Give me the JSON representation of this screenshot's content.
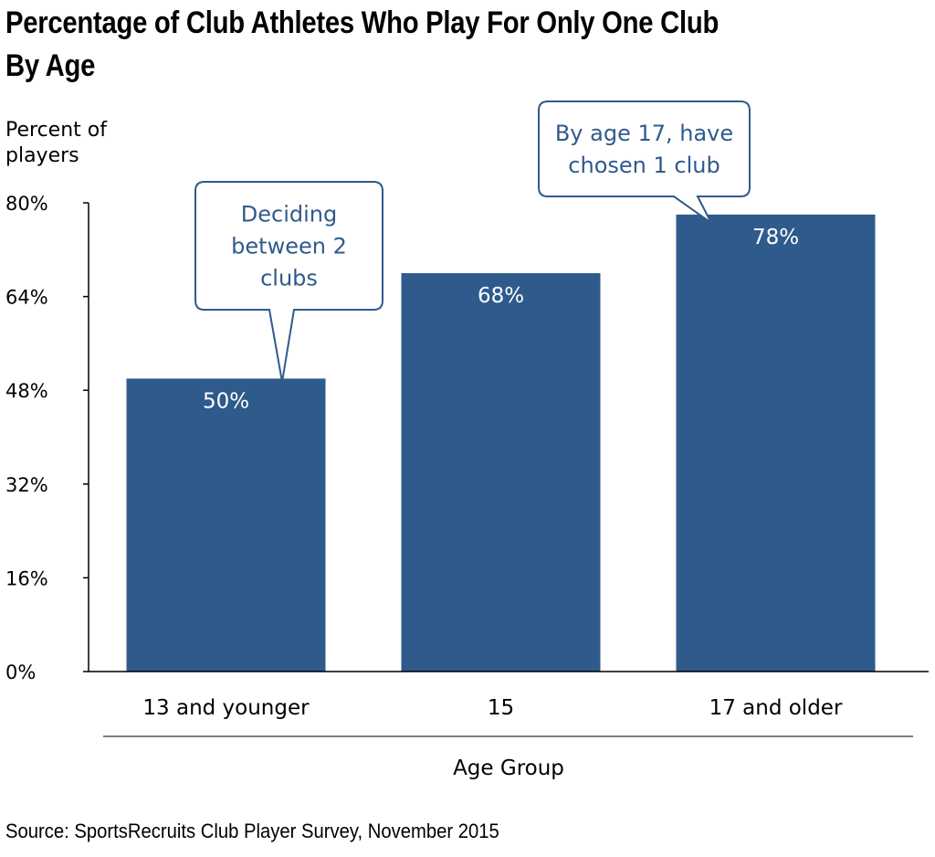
{
  "title_line1": "Percentage of Club Athletes Who Play For Only One Club",
  "title_line2": "By Age",
  "ylabel_line1": "Percent of",
  "ylabel_line2": "players",
  "source": "Source: SportsRecruits Club Player Survey, November 2015",
  "colors": {
    "bar": "#2f5a8c",
    "callout_text": "#2f5a8c",
    "axis": "#000000"
  },
  "chart_data": {
    "type": "bar",
    "title": "Percentage of Club Athletes Who Play For Only One Club By Age",
    "xlabel": "Age Group",
    "ylabel": "Percent of players",
    "categories": [
      "13 and younger",
      "15",
      "17 and older"
    ],
    "values": [
      50,
      68,
      78
    ],
    "value_labels": [
      "50%",
      "68%",
      "78%"
    ],
    "ylim": [
      0,
      80
    ],
    "yticks": [
      0,
      16,
      32,
      48,
      64,
      80
    ],
    "ytick_labels": [
      "0%",
      "16%",
      "32%",
      "48%",
      "64%",
      "80%"
    ],
    "grid": false,
    "annotations": [
      {
        "target": "13 and younger",
        "lines": [
          "Deciding",
          "between 2",
          "clubs"
        ]
      },
      {
        "target": "17 and older",
        "lines": [
          "By age 17, have",
          "chosen 1 club"
        ]
      }
    ]
  }
}
